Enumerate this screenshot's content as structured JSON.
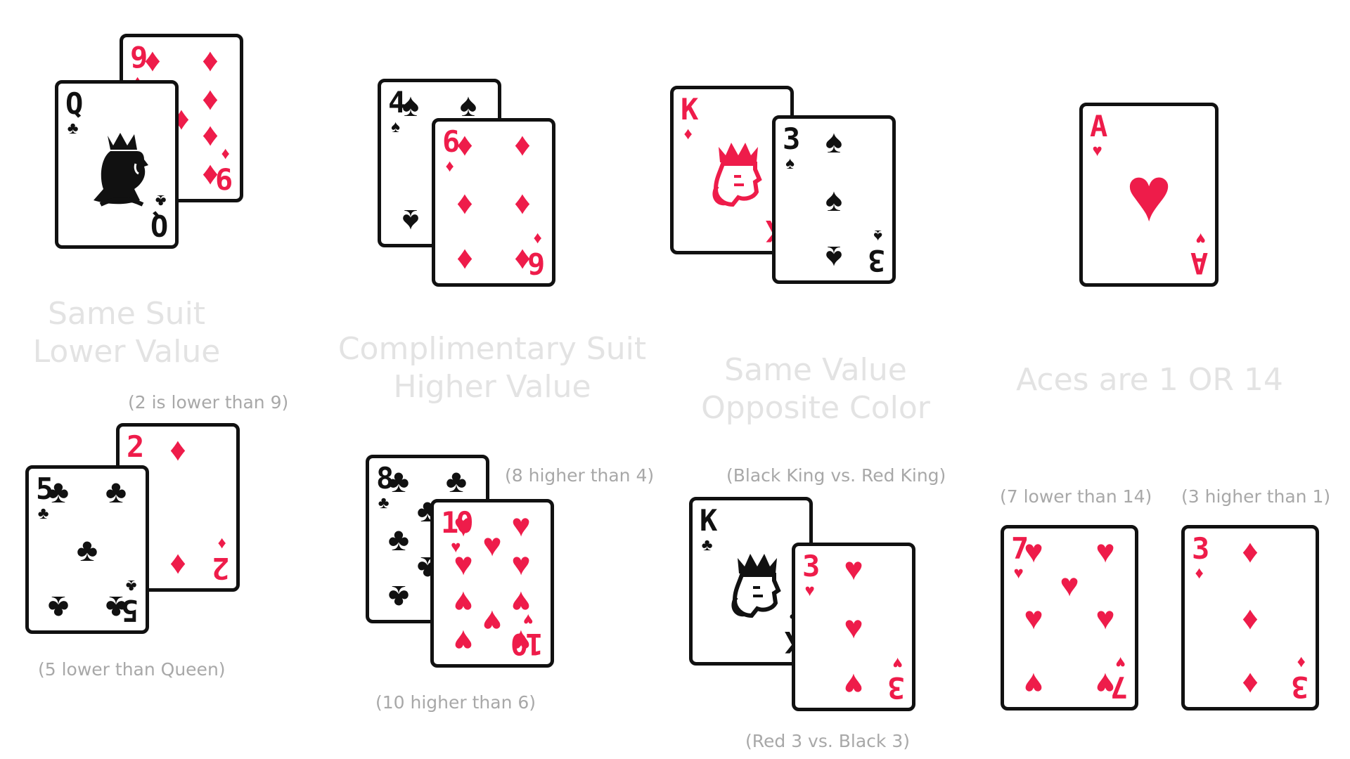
{
  "colors": {
    "red": "#ee1c4a",
    "black": "#111111",
    "title": "#e3e3e3",
    "note": "#a8a8a8"
  },
  "rules": [
    {
      "title_lines": [
        "Same Suit",
        "Lower Value"
      ],
      "top_pair": [
        {
          "rank": "9",
          "suit": "♦",
          "color": "red"
        },
        {
          "rank": "Q",
          "suit": "♣",
          "color": "black"
        }
      ],
      "note_top": "(2 is lower than 9)",
      "bottom_pair": [
        {
          "rank": "2",
          "suit": "♦",
          "color": "red"
        },
        {
          "rank": "5",
          "suit": "♣",
          "color": "black"
        }
      ],
      "note_bottom": "(5 lower than Queen)"
    },
    {
      "title_lines": [
        "Complimentary Suit",
        "Higher Value"
      ],
      "top_pair": [
        {
          "rank": "4",
          "suit": "♠",
          "color": "black"
        },
        {
          "rank": "6",
          "suit": "♦",
          "color": "red"
        }
      ],
      "note_top": "(8 higher than 4)",
      "bottom_pair": [
        {
          "rank": "8",
          "suit": "♣",
          "color": "black"
        },
        {
          "rank": "10",
          "suit": "♥",
          "color": "red"
        }
      ],
      "note_bottom": "(10 higher than 6)"
    },
    {
      "title_lines": [
        "Same Value",
        "Opposite Color"
      ],
      "top_pair": [
        {
          "rank": "K",
          "suit": "♦",
          "color": "red"
        },
        {
          "rank": "3",
          "suit": "♠",
          "color": "black"
        }
      ],
      "note_top": "(Black King vs. Red King)",
      "bottom_pair": [
        {
          "rank": "K",
          "suit": "♣",
          "color": "black"
        },
        {
          "rank": "3",
          "suit": "♥",
          "color": "red"
        }
      ],
      "note_bottom": "(Red 3 vs. Black 3)"
    },
    {
      "title_lines": [
        "Aces are 1 OR 14"
      ],
      "top_card": {
        "rank": "A",
        "suit": "♥",
        "color": "red"
      },
      "note_left": "(7 lower than 14)",
      "note_right": "(3 higher than 1)",
      "bottom_cards": [
        {
          "rank": "7",
          "suit": "♥",
          "color": "red"
        },
        {
          "rank": "3",
          "suit": "♦",
          "color": "red"
        }
      ]
    }
  ]
}
